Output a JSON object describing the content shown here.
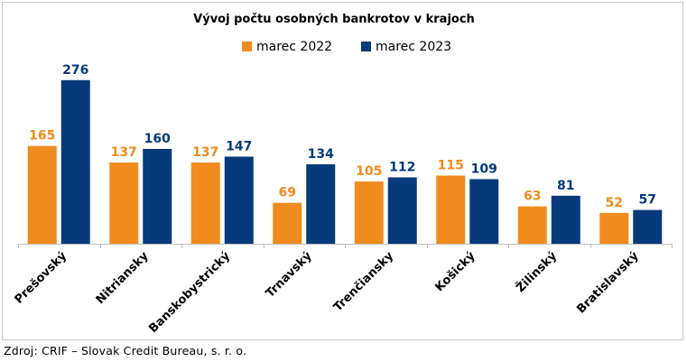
{
  "chart_data": {
    "type": "bar",
    "title": "Vývoj počtu osobných bankrotov v krajoch",
    "categories": [
      "Prešovský",
      "Nitriansky",
      "Banskobystrický",
      "Trnavský",
      "Trenčiansky",
      "Košický",
      "Žilinský",
      "Bratislavský"
    ],
    "series": [
      {
        "name": "marec 2022",
        "color": "#F08C1E",
        "values": [
          165,
          137,
          137,
          69,
          105,
          115,
          63,
          52
        ]
      },
      {
        "name": "marec 2023",
        "color": "#073A7A",
        "values": [
          276,
          160,
          147,
          134,
          112,
          109,
          81,
          57
        ]
      }
    ],
    "xlabel": "",
    "ylabel": "",
    "ylim": [
      0,
      300
    ],
    "grid": false,
    "legend_position": "top-center",
    "data_labels": true
  },
  "source": "Zdroj: CRIF – Slovak Credit Bureau, s. r. o."
}
